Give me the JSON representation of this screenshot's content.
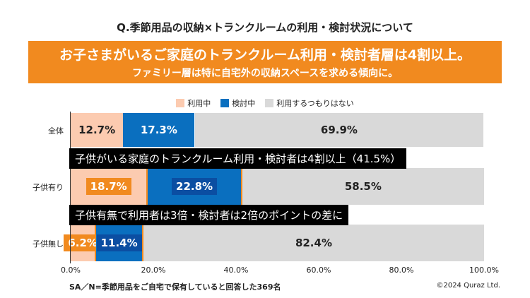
{
  "title": "Q.季節用品の収納×トランクルームの利用・検討状況について",
  "banner": {
    "line1": "お子さまがいるご家庭のトランクルーム利用・検討者層は4割以上。",
    "line2": "ファミリー層は特に自宅外の収納スペースを求める傾向に。"
  },
  "annotations": [
    "子供がいる家庭のトランクルーム利用・検討者は4割以上（41.5%）",
    "子供有無で利用者は3倍・検討者は2倍のポイントの差に"
  ],
  "footer": "SA／N=季節用品をご自宅で保有していると回答した369名",
  "copyright": "©2024 Quraz Ltd.",
  "colors": {
    "using": "#fccbb0",
    "considering": "#0a6fbf",
    "not": "#d9d9d9",
    "accent": "#f18a1f",
    "label_blue": "#0b4ea2"
  },
  "chart_data": {
    "type": "bar",
    "orientation": "horizontal",
    "stacked": true,
    "categories": [
      "全体",
      "子供有り",
      "子供無し"
    ],
    "series": [
      {
        "name": "利用中",
        "values": [
          12.7,
          18.7,
          6.2
        ]
      },
      {
        "name": "検討中",
        "values": [
          17.3,
          22.8,
          11.4
        ]
      },
      {
        "name": "利用するつもりはない",
        "values": [
          69.9,
          58.5,
          82.4
        ]
      }
    ],
    "value_labels": [
      [
        "12.7%",
        "17.3%",
        "69.9%"
      ],
      [
        "18.7%",
        "22.8%",
        "58.5%"
      ],
      [
        "6.2%",
        "11.4%",
        "82.4%"
      ]
    ],
    "xticks": [
      "0.0%",
      "20.0%",
      "40.0%",
      "60.0%",
      "80.0%",
      "100.0%"
    ],
    "xlim": [
      0,
      100
    ],
    "legend": "top-center"
  }
}
